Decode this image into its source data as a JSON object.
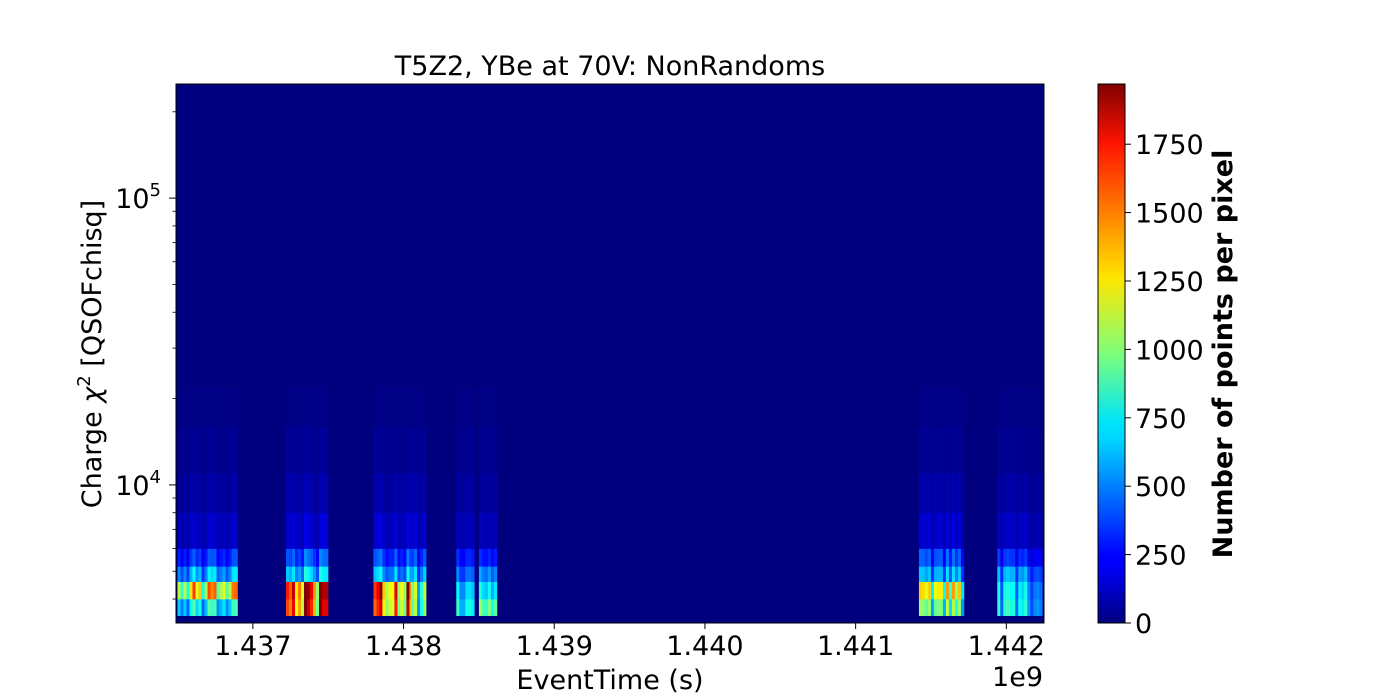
{
  "chart_data": {
    "type": "heatmap",
    "title": "T5Z2, YBe at 70V: NonRandoms",
    "xlabel": "EventTime (s)",
    "ylabel_prefix": "Charge ",
    "ylabel_symbol": "χ",
    "ylabel_exponent": "2",
    "ylabel_suffix": " [QSOFchisq]",
    "x_offset_label": "1e9",
    "x_scale_factor": 1000000000,
    "xlim": [
      1.43649,
      1.44225
    ],
    "x_ticks": [
      1.437,
      1.438,
      1.439,
      1.44,
      1.441,
      1.442
    ],
    "x_tick_labels": [
      "1.437",
      "1.438",
      "1.439",
      "1.440",
      "1.441",
      "1.442"
    ],
    "y_scale": "log",
    "ylim": [
      3300,
      250000
    ],
    "y_major_ticks": [
      {
        "value": 10000,
        "base": "10",
        "exponent": "4"
      },
      {
        "value": 100000,
        "base": "10",
        "exponent": "5"
      }
    ],
    "colormap": "jet",
    "background_color": "#00007f",
    "colorbar": {
      "label": "Number of points per pixel",
      "range": [
        0,
        1970
      ],
      "ticks": [
        0,
        250,
        500,
        750,
        1000,
        1250,
        1500,
        1750
      ],
      "tick_labels": [
        "0",
        "250",
        "500",
        "750",
        "1000",
        "1250",
        "1500",
        "1750"
      ]
    },
    "y_bins": [
      {
        "lo": 3500,
        "hi": 4000
      },
      {
        "lo": 4000,
        "hi": 4600
      },
      {
        "lo": 4600,
        "hi": 5200
      },
      {
        "lo": 5200,
        "hi": 6000
      },
      {
        "lo": 6000,
        "hi": 8000
      },
      {
        "lo": 8000,
        "hi": 11000
      },
      {
        "lo": 11000,
        "hi": 16000
      },
      {
        "lo": 16000,
        "hi": 22000
      }
    ],
    "clusters": [
      {
        "x_start": 1.4365,
        "x_end": 1.4369,
        "density": [
          750,
          1300,
          600,
          350,
          130,
          70,
          35,
          12
        ]
      },
      {
        "x_start": 1.43722,
        "x_end": 1.4375,
        "density": [
          1750,
          1850,
          700,
          450,
          170,
          90,
          45,
          15
        ]
      },
      {
        "x_start": 1.4378,
        "x_end": 1.43808,
        "density": [
          1600,
          1700,
          650,
          420,
          160,
          85,
          40,
          14
        ]
      },
      {
        "x_start": 1.43805,
        "x_end": 1.43815,
        "density": [
          900,
          950,
          560,
          360,
          140,
          80,
          35,
          12
        ]
      },
      {
        "x_start": 1.43835,
        "x_end": 1.43847,
        "density": [
          800,
          700,
          480,
          320,
          120,
          70,
          35,
          15
        ]
      },
      {
        "x_start": 1.4385,
        "x_end": 1.43862,
        "density": [
          950,
          720,
          520,
          300,
          110,
          60,
          30,
          12
        ]
      },
      {
        "x_start": 1.44142,
        "x_end": 1.44172,
        "density": [
          900,
          1150,
          550,
          380,
          140,
          75,
          35,
          14
        ]
      },
      {
        "x_start": 1.44194,
        "x_end": 1.44224,
        "density": [
          700,
          650,
          520,
          300,
          120,
          65,
          30,
          10
        ]
      }
    ]
  }
}
